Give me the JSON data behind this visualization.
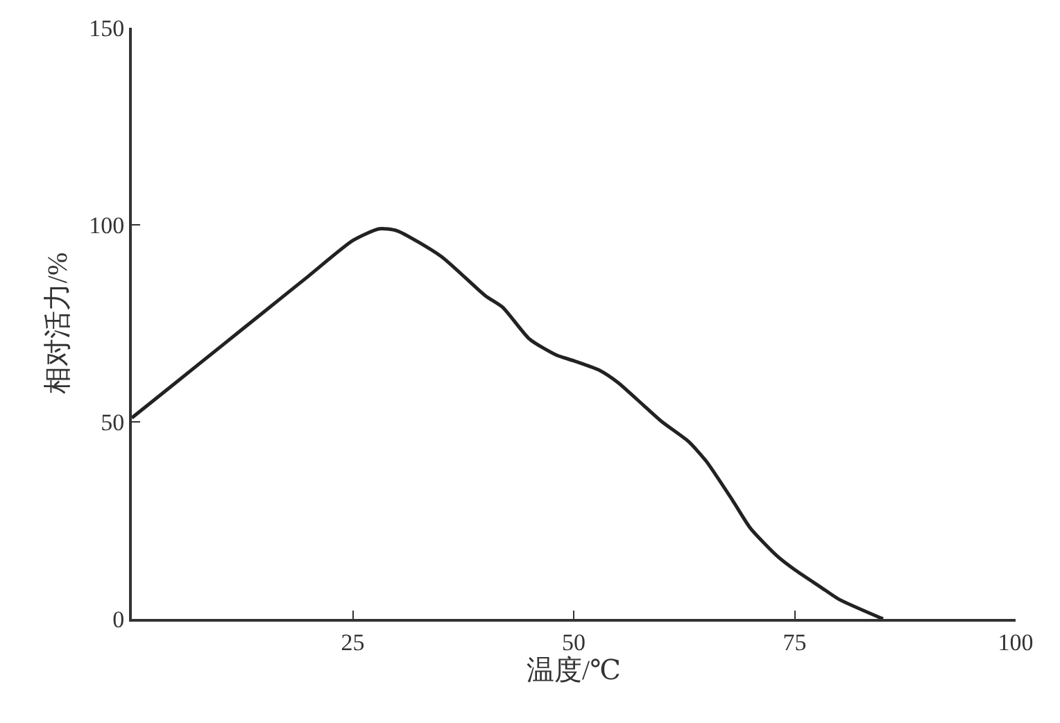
{
  "chart_data": {
    "type": "line",
    "xlabel": "温度/℃",
    "ylabel": "相对活力/%",
    "series": [
      {
        "color": "#222222",
        "x": [
          0,
          5,
          10,
          15,
          20,
          25,
          28,
          30,
          35,
          40,
          42,
          45,
          48,
          50,
          53,
          55,
          58,
          60,
          63,
          65,
          68,
          70,
          73,
          75,
          78,
          80,
          85
        ],
        "values": [
          51,
          60,
          69,
          78,
          87,
          96,
          99,
          98.5,
          92,
          82,
          79,
          71,
          67,
          65.5,
          63,
          60,
          54,
          50,
          45,
          40,
          30,
          23,
          16,
          12.5,
          8,
          5,
          0
        ]
      }
    ],
    "xlim": [
      0,
      100
    ],
    "xticks": [
      {
        "value": 0,
        "label": null
      },
      25,
      50,
      75,
      100
    ],
    "ylim": [
      0,
      150
    ],
    "yticks": [
      0,
      50,
      100,
      150
    ],
    "grid": false,
    "marker": "none",
    "line_style": "solid"
  }
}
